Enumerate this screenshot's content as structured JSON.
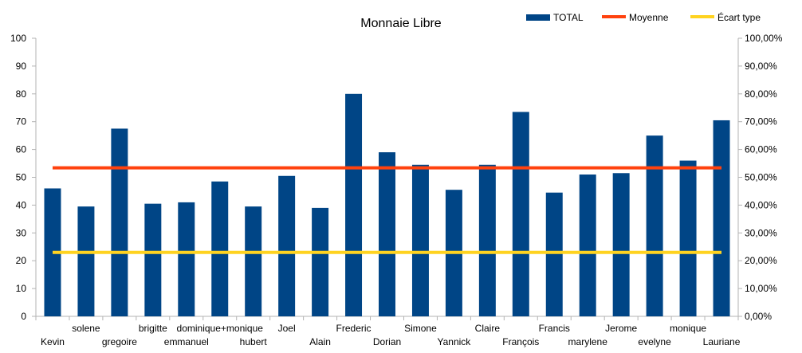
{
  "chart_data": {
    "type": "bar",
    "title": "Monnaie Libre",
    "categories": [
      "Kevin",
      "solene",
      "gregoire",
      "brigitte",
      "emmanuel",
      "dominique+monique",
      "hubert",
      "Joel",
      "Alain",
      "Frederic",
      "Dorian",
      "Simone",
      "Yannick",
      "Claire",
      "François",
      "Francis",
      "marylene",
      "Jerome",
      "evelyne",
      "monique",
      "Lauriane"
    ],
    "series": [
      {
        "name": "TOTAL",
        "type": "bar",
        "axis": "left",
        "color": "#004586",
        "values": [
          46,
          39.5,
          67.5,
          40.5,
          41,
          48.5,
          39.5,
          50.5,
          39,
          80,
          59,
          54.5,
          45.5,
          54.5,
          73.5,
          44.5,
          51,
          51.5,
          65,
          56,
          70.5
        ]
      },
      {
        "name": "Moyenne",
        "type": "line",
        "axis": "right",
        "color": "#ff420e",
        "value_percent": 53.4
      },
      {
        "name": "Écart type",
        "type": "line",
        "axis": "right",
        "color": "#ffd320",
        "value_percent": 23.0
      }
    ],
    "y_left": {
      "ylim": [
        0,
        100
      ],
      "ticks": [
        "0",
        "10",
        "20",
        "30",
        "40",
        "50",
        "60",
        "70",
        "80",
        "90",
        "100"
      ]
    },
    "y_right": {
      "ylim": [
        0,
        100
      ],
      "ticks": [
        "0,00%",
        "10,00%",
        "20,00%",
        "30,00%",
        "40,00%",
        "50,00%",
        "60,00%",
        "70,00%",
        "80,00%",
        "90,00%",
        "100,00%"
      ]
    },
    "grid": false,
    "legend": "top-right"
  }
}
